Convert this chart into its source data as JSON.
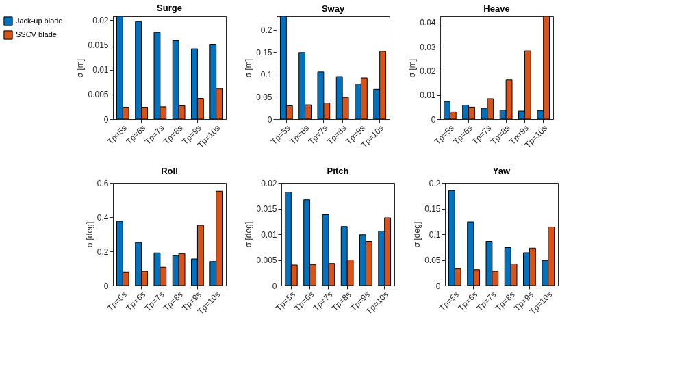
{
  "chart_data": [
    {
      "type": "bar",
      "title": "Surge",
      "ylabel": "σ [m]",
      "categories": [
        "Tp=5s",
        "Tp=6s",
        "Tp=7s",
        "Tp=8s",
        "Tp=9s",
        "Tp=10s"
      ],
      "ylim": [
        0,
        0.0207
      ],
      "yticks": [
        0,
        0.005,
        0.01,
        0.015,
        0.02
      ],
      "legend": "left",
      "series": [
        {
          "name": "Jack-up blade",
          "color": "#0072bd",
          "values": [
            0.0207,
            0.0197,
            0.0175,
            0.0158,
            0.0142,
            0.0151
          ]
        },
        {
          "name": "SSCV blade",
          "color": "#d95319",
          "values": [
            0.0024,
            0.0024,
            0.0025,
            0.0027,
            0.0042,
            0.0062
          ]
        }
      ]
    },
    {
      "type": "bar",
      "title": "Sway",
      "ylabel": "σ [m]",
      "categories": [
        "Tp=5s",
        "Tp=6s",
        "Tp=7s",
        "Tp=8s",
        "Tp=9s",
        "Tp=10s"
      ],
      "ylim": [
        0,
        0.23
      ],
      "yticks": [
        0,
        0.05,
        0.1,
        0.15,
        0.2
      ],
      "series": [
        {
          "name": "Jack-up blade",
          "color": "#0072bd",
          "values": [
            0.23,
            0.149,
            0.106,
            0.095,
            0.079,
            0.067
          ]
        },
        {
          "name": "SSCV blade",
          "color": "#d95319",
          "values": [
            0.03,
            0.032,
            0.036,
            0.049,
            0.092,
            0.152
          ]
        }
      ]
    },
    {
      "type": "bar",
      "title": "Heave",
      "ylabel": "σ [m]",
      "categories": [
        "Tp=5s",
        "Tp=6s",
        "Tp=7s",
        "Tp=8s",
        "Tp=9s",
        "Tp=10s"
      ],
      "ylim": [
        0,
        0.0425
      ],
      "yticks": [
        0,
        0.01,
        0.02,
        0.03,
        0.04
      ],
      "series": [
        {
          "name": "Jack-up blade",
          "color": "#0072bd",
          "values": [
            0.0073,
            0.0058,
            0.0045,
            0.0038,
            0.0034,
            0.0036
          ]
        },
        {
          "name": "SSCV blade",
          "color": "#d95319",
          "values": [
            0.003,
            0.005,
            0.0085,
            0.0162,
            0.0283,
            0.0425
          ]
        }
      ]
    },
    {
      "type": "bar",
      "title": "Roll",
      "ylabel": "σ [deg]",
      "categories": [
        "Tp=5s",
        "Tp=6s",
        "Tp=7s",
        "Tp=8s",
        "Tp=9s",
        "Tp=10s"
      ],
      "ylim": [
        0,
        0.6
      ],
      "yticks": [
        0,
        0.2,
        0.4,
        0.6
      ],
      "series": [
        {
          "name": "Jack-up blade",
          "color": "#0072bd",
          "values": [
            0.376,
            0.252,
            0.191,
            0.175,
            0.156,
            0.141
          ]
        },
        {
          "name": "SSCV blade",
          "color": "#d95319",
          "values": [
            0.079,
            0.084,
            0.107,
            0.187,
            0.352,
            0.551
          ]
        }
      ]
    },
    {
      "type": "bar",
      "title": "Pitch",
      "ylabel": "σ [deg]",
      "categories": [
        "Tp=5s",
        "Tp=6s",
        "Tp=7s",
        "Tp=8s",
        "Tp=9s",
        "Tp=10s"
      ],
      "ylim": [
        0,
        0.02
      ],
      "yticks": [
        0,
        0.005,
        0.01,
        0.015,
        0.02
      ],
      "series": [
        {
          "name": "Jack-up blade",
          "color": "#0072bd",
          "values": [
            0.0182,
            0.0167,
            0.0138,
            0.0115,
            0.0099,
            0.0106
          ]
        },
        {
          "name": "SSCV blade",
          "color": "#d95319",
          "values": [
            0.004,
            0.0041,
            0.0043,
            0.005,
            0.0086,
            0.0132
          ]
        }
      ]
    },
    {
      "type": "bar",
      "title": "Yaw",
      "ylabel": "σ [deg]",
      "categories": [
        "Tp=5s",
        "Tp=6s",
        "Tp=7s",
        "Tp=8s",
        "Tp=9s",
        "Tp=10s"
      ],
      "ylim": [
        0,
        0.2
      ],
      "yticks": [
        0,
        0.05,
        0.1,
        0.15,
        0.2
      ],
      "series": [
        {
          "name": "Jack-up blade",
          "color": "#0072bd",
          "values": [
            0.185,
            0.124,
            0.086,
            0.074,
            0.064,
            0.049
          ]
        },
        {
          "name": "SSCV blade",
          "color": "#d95319",
          "values": [
            0.033,
            0.031,
            0.028,
            0.042,
            0.073,
            0.114
          ]
        }
      ]
    }
  ]
}
